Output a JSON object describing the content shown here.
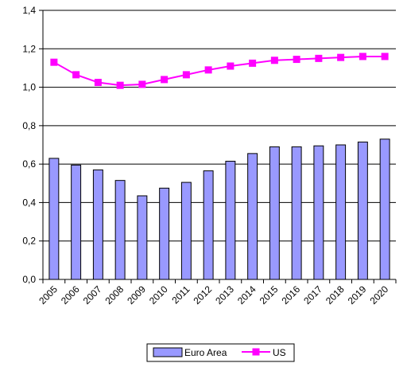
{
  "chart_data": {
    "type": "bar",
    "categories": [
      "2005",
      "2006",
      "2007",
      "2008",
      "2009",
      "2010",
      "2011",
      "2012",
      "2013",
      "2014",
      "2015",
      "2016",
      "2017",
      "2018",
      "2019",
      "2020"
    ],
    "ylim": [
      0,
      1.4
    ],
    "yticks": [
      "0,0",
      "0,2",
      "0,4",
      "0,6",
      "0,8",
      "1,0",
      "1,2",
      "1,4"
    ],
    "grid": true,
    "legend_position": "bottom",
    "series": [
      {
        "name": "Euro Area",
        "kind": "bar",
        "color": "#9999ff",
        "values": [
          0.63,
          0.595,
          0.57,
          0.515,
          0.435,
          0.475,
          0.505,
          0.565,
          0.615,
          0.655,
          0.69,
          0.69,
          0.695,
          0.7,
          0.715,
          0.73
        ]
      },
      {
        "name": "US",
        "kind": "line",
        "color": "#ff00ff",
        "values": [
          1.13,
          1.065,
          1.025,
          1.01,
          1.015,
          1.04,
          1.065,
          1.09,
          1.11,
          1.125,
          1.14,
          1.145,
          1.15,
          1.155,
          1.16,
          1.16
        ]
      }
    ]
  }
}
